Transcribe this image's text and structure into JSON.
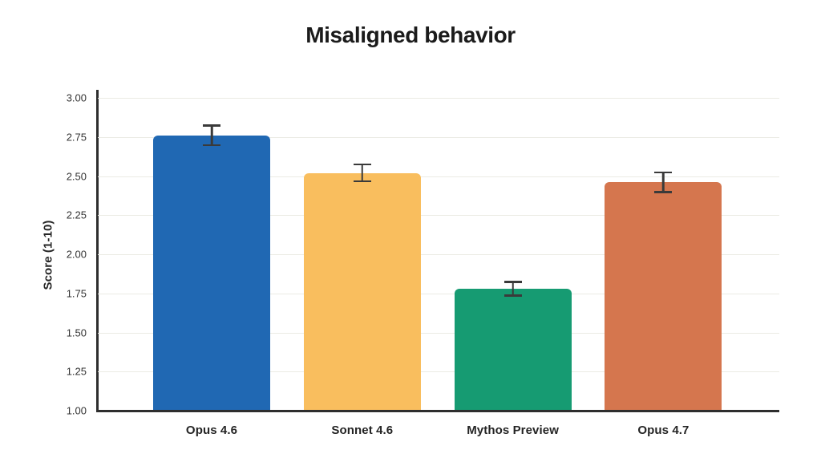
{
  "chart_data": {
    "type": "bar",
    "title": "Misaligned behavior",
    "xlabel": "",
    "ylabel": "Score (1-10)",
    "ylim": [
      1.0,
      3.0
    ],
    "ytick_labels": [
      "1.00",
      "1.25",
      "1.50",
      "1.75",
      "2.00",
      "2.25",
      "2.50",
      "2.75",
      "3.00"
    ],
    "ytick_values": [
      1.0,
      1.25,
      1.5,
      1.75,
      2.0,
      2.25,
      2.5,
      2.75,
      3.0
    ],
    "categories": [
      "Opus 4.6",
      "Sonnet 4.6",
      "Mythos Preview",
      "Opus 4.7"
    ],
    "values": [
      2.76,
      2.52,
      1.78,
      2.46
    ],
    "errors": [
      0.07,
      0.06,
      0.05,
      0.07
    ],
    "bar_colors": [
      "#2068b3",
      "#f9be5e",
      "#169b72",
      "#d5764e"
    ],
    "grid": true,
    "legend": false,
    "error_bar_color": "#3a3a3a",
    "axis_color": "#2e2e2e",
    "background_color": "#ffffff"
  }
}
